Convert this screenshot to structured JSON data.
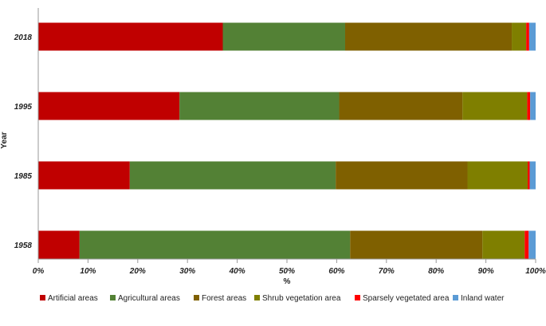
{
  "chart_data": {
    "type": "bar",
    "orientation": "horizontal",
    "stacked": "percent",
    "categories": [
      "2018",
      "1995",
      "1985",
      "1958"
    ],
    "series": [
      {
        "name": "Artificial areas",
        "color": "#c00000",
        "values": [
          37.1,
          28.4,
          18.4,
          8.3
        ]
      },
      {
        "name": "Agricultural areas",
        "color": "#538135",
        "values": [
          24.6,
          32.1,
          41.4,
          54.4
        ]
      },
      {
        "name": "Forest areas",
        "color": "#7f6000",
        "values": [
          33.5,
          24.8,
          26.5,
          26.6
        ]
      },
      {
        "name": "Shrub vegetation area",
        "color": "#7f7f00",
        "values": [
          2.9,
          13.0,
          12.1,
          8.5
        ]
      },
      {
        "name": "Sparsely vegetated area",
        "color": "#ff0000",
        "values": [
          0.6,
          0.6,
          0.4,
          0.8
        ]
      },
      {
        "name": "Inland water",
        "color": "#5b9bd5",
        "values": [
          1.3,
          1.1,
          1.2,
          1.4
        ]
      }
    ],
    "xlabel": "%",
    "ylabel": "Year",
    "xlim": [
      0,
      100
    ],
    "xticks": [
      "0%",
      "10%",
      "20%",
      "30%",
      "40%",
      "50%",
      "60%",
      "70%",
      "80%",
      "90%",
      "100%"
    ],
    "grid": false,
    "legend_position": "bottom"
  }
}
